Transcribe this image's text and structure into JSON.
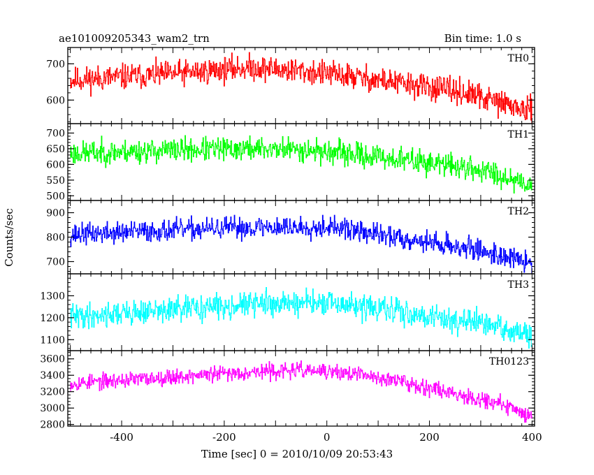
{
  "header": {
    "left_title": "ae101009205343_wam2_trn",
    "right_title": "Bin time: 1.0 s"
  },
  "chart_data": {
    "type": "line",
    "xlabel": "Time [sec] 0 = 2010/10/09 20:53:43",
    "ylabel": "Counts/sec",
    "xlim": [
      -505,
      405
    ],
    "xticks": [
      -400,
      -200,
      0,
      200,
      400
    ],
    "bin_time_s": 1.0,
    "panels": [
      {
        "name": "TH0",
        "color": "#ff0000",
        "ylim": [
          535,
          745
        ],
        "yticks": [
          600,
          700
        ],
        "trend": [
          [
            -500,
            655
          ],
          [
            -300,
            672
          ],
          [
            -150,
            690
          ],
          [
            -50,
            680
          ],
          [
            50,
            665
          ],
          [
            150,
            645
          ],
          [
            250,
            625
          ],
          [
            320,
            600
          ],
          [
            360,
            585
          ],
          [
            400,
            565
          ]
        ],
        "noise": 28,
        "seed": 11
      },
      {
        "name": "TH1",
        "color": "#00ff00",
        "ylim": [
          485,
          730
        ],
        "yticks": [
          500,
          550,
          600,
          650,
          700
        ],
        "trend": [
          [
            -500,
            635
          ],
          [
            -300,
            645
          ],
          [
            -150,
            650
          ],
          [
            -50,
            648
          ],
          [
            50,
            632
          ],
          [
            150,
            615
          ],
          [
            250,
            595
          ],
          [
            320,
            575
          ],
          [
            360,
            555
          ],
          [
            400,
            535
          ]
        ],
        "noise": 30,
        "seed": 23
      },
      {
        "name": "TH2",
        "color": "#0000ff",
        "ylim": [
          650,
          950
        ],
        "yticks": [
          700,
          800,
          900
        ],
        "trend": [
          [
            -500,
            810
          ],
          [
            -300,
            828
          ],
          [
            -150,
            840
          ],
          [
            -50,
            840
          ],
          [
            0,
            845
          ],
          [
            100,
            810
          ],
          [
            200,
            780
          ],
          [
            300,
            745
          ],
          [
            360,
            715
          ],
          [
            400,
            690
          ]
        ],
        "noise": 35,
        "seed": 37
      },
      {
        "name": "TH3",
        "color": "#00ffff",
        "ylim": [
          1050,
          1400
        ],
        "yticks": [
          1100,
          1200,
          1300
        ],
        "trend": [
          [
            -500,
            1205
          ],
          [
            -300,
            1235
          ],
          [
            -150,
            1262
          ],
          [
            -50,
            1268
          ],
          [
            50,
            1255
          ],
          [
            150,
            1225
          ],
          [
            250,
            1190
          ],
          [
            320,
            1165
          ],
          [
            360,
            1140
          ],
          [
            400,
            1110
          ]
        ],
        "noise": 45,
        "seed": 41
      },
      {
        "name": "TH0123",
        "color": "#ff00ff",
        "ylim": [
          2780,
          3700
        ],
        "yticks": [
          2800,
          3000,
          3200,
          3400,
          3600
        ],
        "trend": [
          [
            -500,
            3300
          ],
          [
            -300,
            3380
          ],
          [
            -150,
            3440
          ],
          [
            -50,
            3460
          ],
          [
            50,
            3420
          ],
          [
            150,
            3320
          ],
          [
            250,
            3180
          ],
          [
            320,
            3080
          ],
          [
            360,
            3000
          ],
          [
            400,
            2900
          ]
        ],
        "noise": 75,
        "seed": 53
      }
    ]
  }
}
